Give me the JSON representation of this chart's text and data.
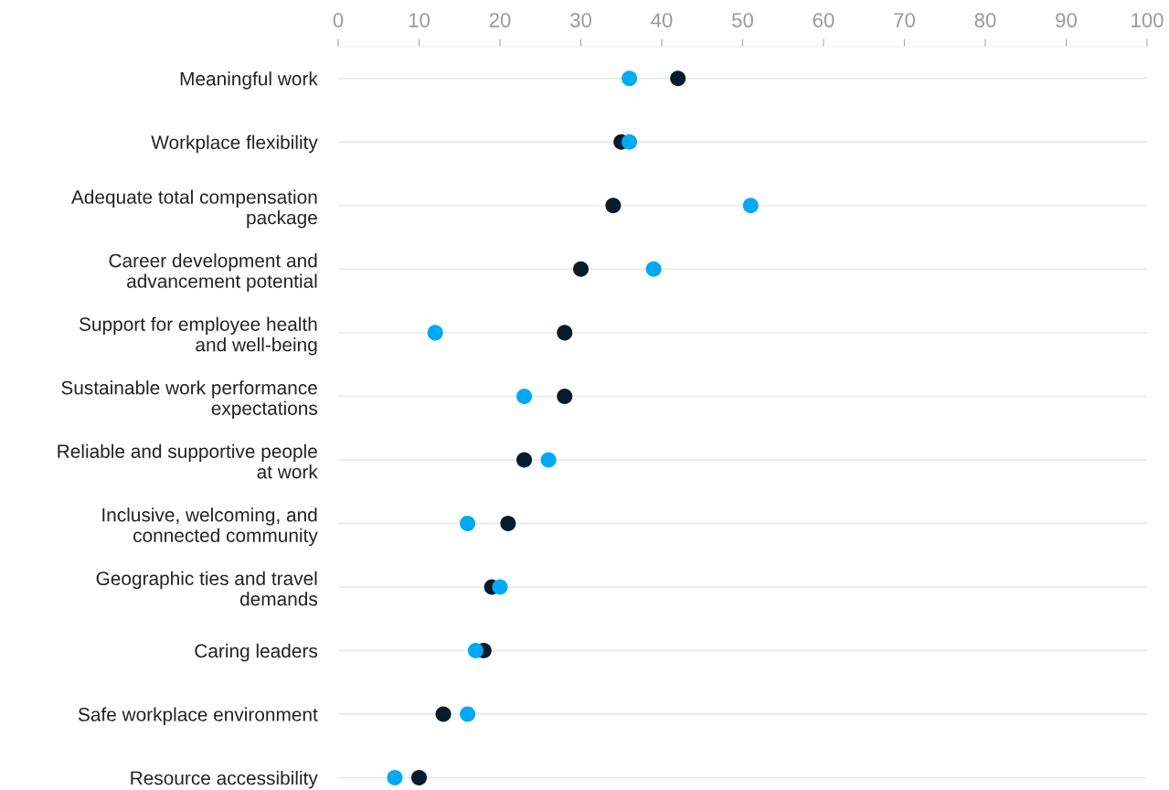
{
  "chart_data": {
    "type": "scatter",
    "orientation": "horizontal",
    "categories": [
      "Meaningful work",
      "Workplace flexibility",
      "Adequate total compensation\npackage",
      "Career development and\nadvancement potential",
      "Support for employee health\nand well-being",
      "Sustainable work performance\nexpectations",
      "Reliable and supportive people\nat work",
      "Inclusive, welcoming, and\nconnected community",
      "Geographic ties and travel\ndemands",
      "Caring leaders",
      "Safe workplace environment",
      "Resource accessibility"
    ],
    "series": [
      {
        "color": "#051c2c",
        "values": [
          42,
          35,
          34,
          30,
          28,
          28,
          23,
          21,
          19,
          18,
          13,
          10
        ]
      },
      {
        "color": "#00a9f4",
        "values": [
          36,
          36,
          51,
          39,
          12,
          23,
          26,
          16,
          20,
          17,
          16,
          7
        ]
      }
    ],
    "xlim": [
      0,
      100
    ],
    "xticks": [
      0,
      10,
      20,
      30,
      40,
      50,
      60,
      70,
      80,
      90,
      100
    ],
    "grid": "y",
    "marker": "circle"
  }
}
